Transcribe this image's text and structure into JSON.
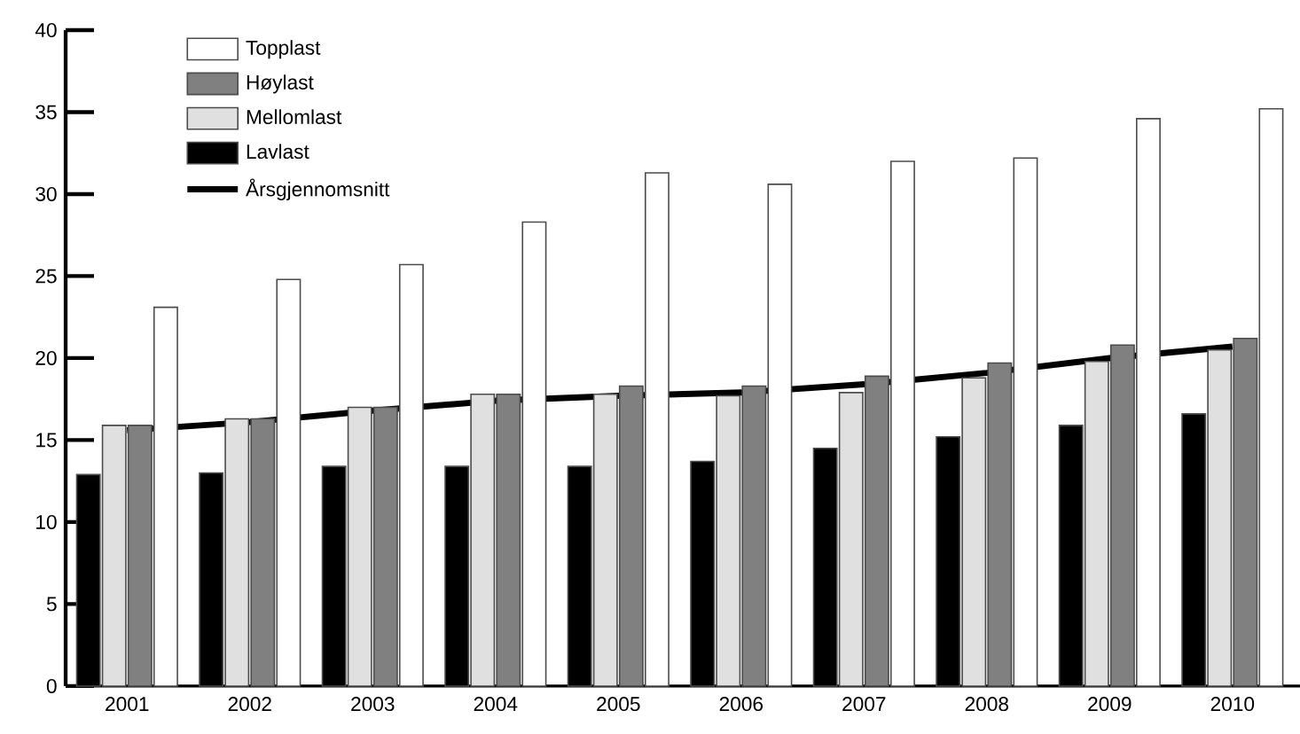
{
  "chart_data": {
    "type": "bar",
    "categories": [
      "2001",
      "2002",
      "2003",
      "2004",
      "2005",
      "2006",
      "2007",
      "2008",
      "2009",
      "2010"
    ],
    "series": [
      {
        "name": "Årsgjennomsnitt",
        "type": "line",
        "color": "#000000",
        "values": [
          15.6,
          16.1,
          16.8,
          17.4,
          17.7,
          17.9,
          18.4,
          19.1,
          20.0,
          20.7
        ]
      },
      {
        "name": "Lavlast",
        "color": "#000000",
        "values": [
          12.9,
          13.0,
          13.4,
          13.4,
          13.4,
          13.7,
          14.5,
          15.2,
          15.9,
          16.6
        ]
      },
      {
        "name": "Mellomlast",
        "color": "#e0e0e0",
        "values": [
          15.9,
          16.3,
          17.0,
          17.8,
          17.8,
          17.7,
          17.9,
          18.8,
          19.8,
          20.5
        ]
      },
      {
        "name": "Høylast",
        "color": "#808080",
        "values": [
          15.9,
          16.3,
          17.0,
          17.8,
          18.3,
          18.3,
          18.9,
          19.7,
          20.8,
          21.2
        ]
      },
      {
        "name": "Topplast",
        "color": "#ffffff",
        "values": [
          23.1,
          24.8,
          25.7,
          28.3,
          31.3,
          30.6,
          32.0,
          32.2,
          34.6,
          35.2
        ]
      }
    ],
    "ylim": [
      0,
      40
    ],
    "yticks": [
      0,
      5,
      10,
      15,
      20,
      25,
      30,
      35,
      40
    ],
    "grid": false,
    "legend": "top left",
    "marker": "none"
  }
}
